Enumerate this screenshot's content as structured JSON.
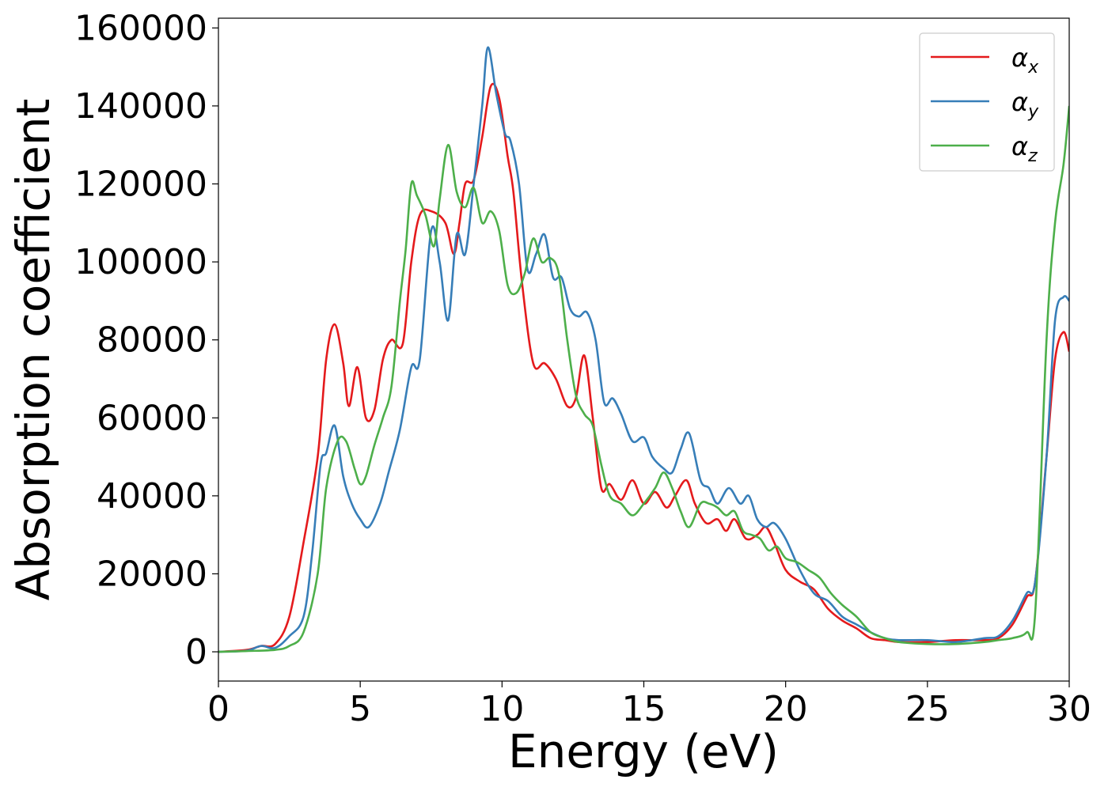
{
  "chart_data": {
    "type": "line",
    "title": "",
    "xlabel": "Energy (eV)",
    "ylabel": "Absorption coefficient",
    "xlim": [
      0,
      30
    ],
    "ylim": [
      -7500,
      162500
    ],
    "xticks": [
      0,
      5,
      10,
      15,
      20,
      25,
      30
    ],
    "yticks": [
      0,
      20000,
      40000,
      60000,
      80000,
      100000,
      120000,
      140000,
      160000
    ],
    "xtick_labels": [
      "0",
      "5",
      "10",
      "15",
      "20",
      "25",
      "30"
    ],
    "ytick_labels": [
      "0",
      "20000",
      "40000",
      "60000",
      "80000",
      "100000",
      "120000",
      "140000",
      "160000"
    ],
    "grid": false,
    "legend_position": "top-right",
    "series": [
      {
        "name": "α_x",
        "symbol": "α",
        "subscript": "x",
        "color": "#e41a1c",
        "x": [
          0,
          1.0,
          1.5,
          2.0,
          2.5,
          3.0,
          3.5,
          3.8,
          4.1,
          4.4,
          4.6,
          4.9,
          5.2,
          5.5,
          5.8,
          6.1,
          6.5,
          6.8,
          7.1,
          7.5,
          8.0,
          8.3,
          8.5,
          8.7,
          9.0,
          9.3,
          9.6,
          9.9,
          10.2,
          10.4,
          10.7,
          11.1,
          11.5,
          11.9,
          12.3,
          12.6,
          12.9,
          13.2,
          13.5,
          13.8,
          14.2,
          14.6,
          15.0,
          15.4,
          15.8,
          16.1,
          16.5,
          16.8,
          17.2,
          17.6,
          17.9,
          18.2,
          18.6,
          19.0,
          19.3,
          19.6,
          20.0,
          20.5,
          21.0,
          21.5,
          22.0,
          22.5,
          23.0,
          23.5,
          24.0,
          25.0,
          26.0,
          27.0,
          27.5,
          28.0,
          28.5,
          28.8,
          29.2,
          29.5,
          29.8,
          30.0
        ],
        "y": [
          0,
          500,
          1500,
          2000,
          9000,
          28000,
          50000,
          75000,
          84000,
          74000,
          63000,
          73000,
          60000,
          62000,
          75000,
          80000,
          79000,
          100000,
          112000,
          113000,
          110000,
          102000,
          110000,
          120000,
          121000,
          132000,
          145000,
          142000,
          127000,
          118000,
          95000,
          74000,
          74000,
          70000,
          63000,
          65000,
          76000,
          60000,
          42000,
          43000,
          39000,
          44000,
          38000,
          41000,
          37000,
          40000,
          44000,
          38000,
          33000,
          34000,
          31000,
          34000,
          29000,
          30000,
          32000,
          28000,
          21000,
          18000,
          16000,
          11000,
          8000,
          6000,
          3500,
          3000,
          2500,
          2500,
          3000,
          3000,
          3500,
          7000,
          14000,
          18000,
          50000,
          75000,
          82000,
          77000
        ]
      },
      {
        "name": "α_y",
        "symbol": "α",
        "subscript": "y",
        "color": "#377eb8",
        "x": [
          0,
          1.0,
          1.5,
          2.0,
          2.5,
          3.0,
          3.3,
          3.6,
          3.8,
          4.1,
          4.4,
          4.7,
          5.0,
          5.3,
          5.7,
          6.0,
          6.4,
          6.8,
          7.1,
          7.5,
          7.8,
          8.1,
          8.4,
          8.7,
          9.0,
          9.3,
          9.5,
          9.8,
          10.1,
          10.3,
          10.6,
          10.9,
          11.2,
          11.5,
          11.8,
          12.1,
          12.4,
          12.7,
          13.0,
          13.3,
          13.6,
          13.9,
          14.2,
          14.6,
          15.0,
          15.3,
          15.7,
          16.0,
          16.3,
          16.6,
          17.0,
          17.3,
          17.6,
          18.0,
          18.4,
          18.7,
          19.0,
          19.3,
          19.6,
          20.0,
          20.5,
          21.0,
          21.5,
          22.0,
          22.5,
          23.0,
          23.5,
          24.0,
          25.0,
          26.0,
          27.0,
          27.5,
          28.0,
          28.5,
          28.8,
          29.2,
          29.5,
          29.8,
          30.0
        ],
        "y": [
          0,
          300,
          1500,
          1000,
          4000,
          9000,
          25000,
          48000,
          51000,
          58000,
          45000,
          38000,
          34000,
          32000,
          38000,
          46000,
          57000,
          73000,
          75000,
          108000,
          100000,
          85000,
          107000,
          102000,
          120000,
          140000,
          155000,
          143000,
          133000,
          131000,
          120000,
          98000,
          102000,
          107000,
          96000,
          96000,
          88000,
          86000,
          87000,
          80000,
          64000,
          65000,
          61000,
          54000,
          55000,
          50000,
          47000,
          46000,
          52000,
          56000,
          44000,
          42000,
          38000,
          42000,
          38000,
          40000,
          34000,
          32000,
          33000,
          29000,
          21000,
          15000,
          13000,
          9000,
          7000,
          5000,
          3500,
          3000,
          3000,
          2500,
          3500,
          4000,
          8000,
          15000,
          18000,
          50000,
          85000,
          91000,
          90000
        ]
      },
      {
        "name": "α_z",
        "symbol": "α",
        "subscript": "z",
        "color": "#4daf4a",
        "x": [
          0,
          1.0,
          2.0,
          2.5,
          3.0,
          3.5,
          3.8,
          4.2,
          4.5,
          4.8,
          5.0,
          5.2,
          5.5,
          5.8,
          6.1,
          6.4,
          6.6,
          6.8,
          7.0,
          7.3,
          7.6,
          7.8,
          8.1,
          8.4,
          8.7,
          9.0,
          9.3,
          9.6,
          9.9,
          10.2,
          10.5,
          10.8,
          11.1,
          11.4,
          11.7,
          12.0,
          12.3,
          12.6,
          12.9,
          13.2,
          13.5,
          13.8,
          14.2,
          14.6,
          15.0,
          15.4,
          15.7,
          16.0,
          16.3,
          16.6,
          17.0,
          17.3,
          17.6,
          17.9,
          18.2,
          18.5,
          18.8,
          19.1,
          19.4,
          19.7,
          20.0,
          20.4,
          20.8,
          21.2,
          21.6,
          22.0,
          22.5,
          23.0,
          23.5,
          24.0,
          25.0,
          26.0,
          27.0,
          27.5,
          28.0,
          28.5,
          28.8,
          29.2,
          29.5,
          29.8,
          30.0
        ],
        "y": [
          0,
          200,
          500,
          1500,
          5000,
          20000,
          42000,
          54000,
          54000,
          47000,
          43000,
          45000,
          53000,
          60000,
          68000,
          90000,
          103000,
          120000,
          117000,
          112000,
          104000,
          116000,
          130000,
          118000,
          114000,
          119000,
          110000,
          113000,
          108000,
          94000,
          92000,
          97000,
          106000,
          100000,
          101000,
          97000,
          80000,
          66000,
          61000,
          58000,
          48000,
          40000,
          38000,
          35000,
          38000,
          42000,
          46000,
          42000,
          36000,
          32000,
          38000,
          38000,
          37000,
          35000,
          36000,
          31000,
          30000,
          29000,
          26000,
          27000,
          24000,
          23000,
          21000,
          19000,
          15000,
          12000,
          9000,
          5000,
          3500,
          2500,
          2000,
          2000,
          2500,
          3000,
          3500,
          5000,
          10000,
          80000,
          110000,
          125000,
          140000
        ]
      }
    ]
  }
}
